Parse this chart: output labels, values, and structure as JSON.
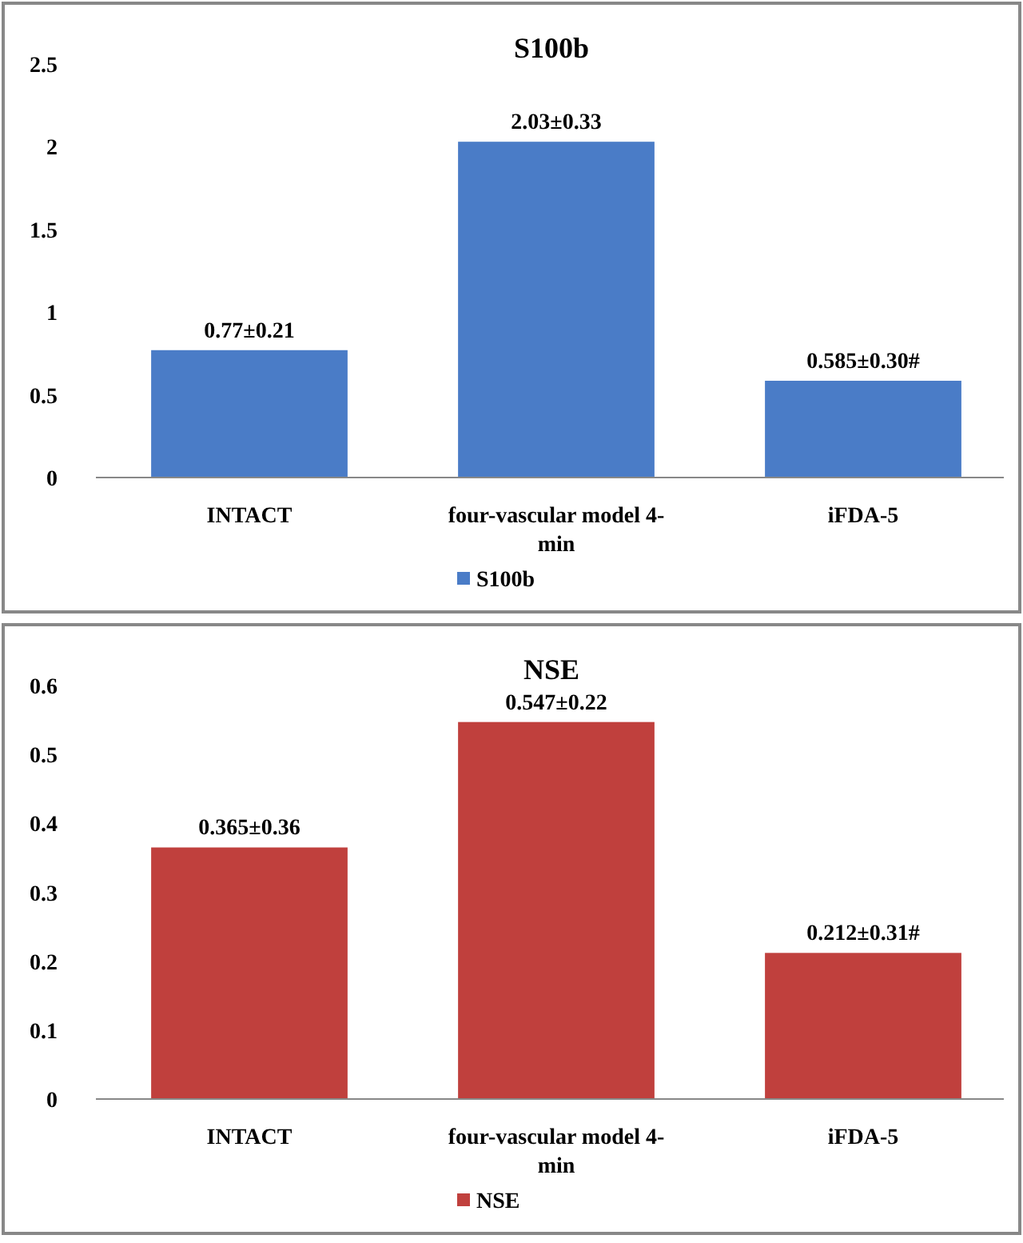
{
  "chart_data": [
    {
      "type": "bar",
      "title": "S100b",
      "categories": [
        "INTACT",
        "four-vascular model 4-min",
        "iFDA-5"
      ],
      "series": [
        {
          "name": "S100b",
          "color": "#4a7cc7",
          "values": [
            0.77,
            2.03,
            0.585
          ],
          "value_labels": [
            "0.77±0.21",
            "2.03±0.33",
            "0.585±0.30#"
          ]
        }
      ],
      "ylim": [
        0,
        2.5
      ],
      "yticks": [
        0,
        0.5,
        1,
        1.5,
        2,
        2.5
      ],
      "legend": "bottom"
    },
    {
      "type": "bar",
      "title": "NSE",
      "categories": [
        "INTACT",
        "four-vascular model 4-min",
        "iFDA-5"
      ],
      "series": [
        {
          "name": "NSE",
          "color": "#c0403d",
          "values": [
            0.365,
            0.547,
            0.212
          ],
          "value_labels": [
            "0.365±0.36",
            "0.547±0.22",
            "0.212±0.31#"
          ]
        }
      ],
      "ylim": [
        0,
        0.6
      ],
      "yticks": [
        0,
        0.1,
        0.2,
        0.3,
        0.4,
        0.5,
        0.6
      ],
      "legend": "bottom"
    }
  ]
}
